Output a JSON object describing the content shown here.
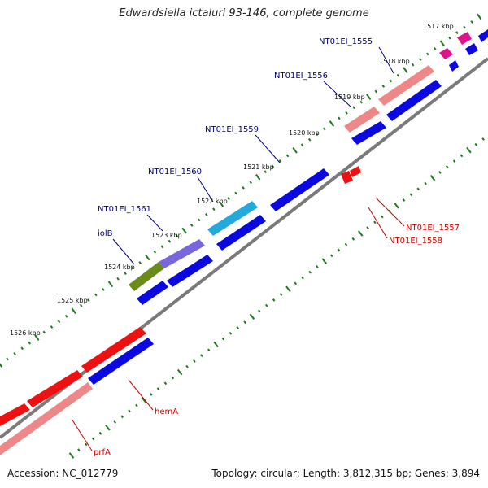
{
  "title": "Edwardsiella ictaluri 93-146, complete genome",
  "footer": {
    "accession": "Accession: NC_012779",
    "topology": "Topology: circular; Length: 3,812,315 bp; Genes: 3,894"
  },
  "colors": {
    "backbone": "#7a7a7a",
    "tick": "#1a7a1a",
    "blue_gene": "#0a0ae0",
    "red_gene": "#ee1111",
    "pink_gene": "#ee8888",
    "magenta_gene": "#e0148a",
    "cyan_gene": "#22aadd",
    "purple_gene": "#7766dd",
    "olive_gene": "#6a8a1a",
    "forward_label": "#00008b",
    "reverse_label": "#cc0000"
  },
  "scale_labels": [
    "1517 kbp",
    "1518 kbp",
    "1519 kbp",
    "1520 kbp",
    "1521 kbp",
    "1522 kbp",
    "1523 kbp",
    "1524 kbp",
    "1525 kbp",
    "1526 kbp"
  ],
  "gene_labels": {
    "forward": [
      "NT01EI_1555",
      "NT01EI_1556",
      "NT01EI_1559",
      "NT01EI_1560",
      "NT01EI_1561",
      "iolB"
    ],
    "reverse": [
      "NT01EI_1557",
      "NT01EI_1558",
      "hemA",
      "prfA"
    ]
  }
}
